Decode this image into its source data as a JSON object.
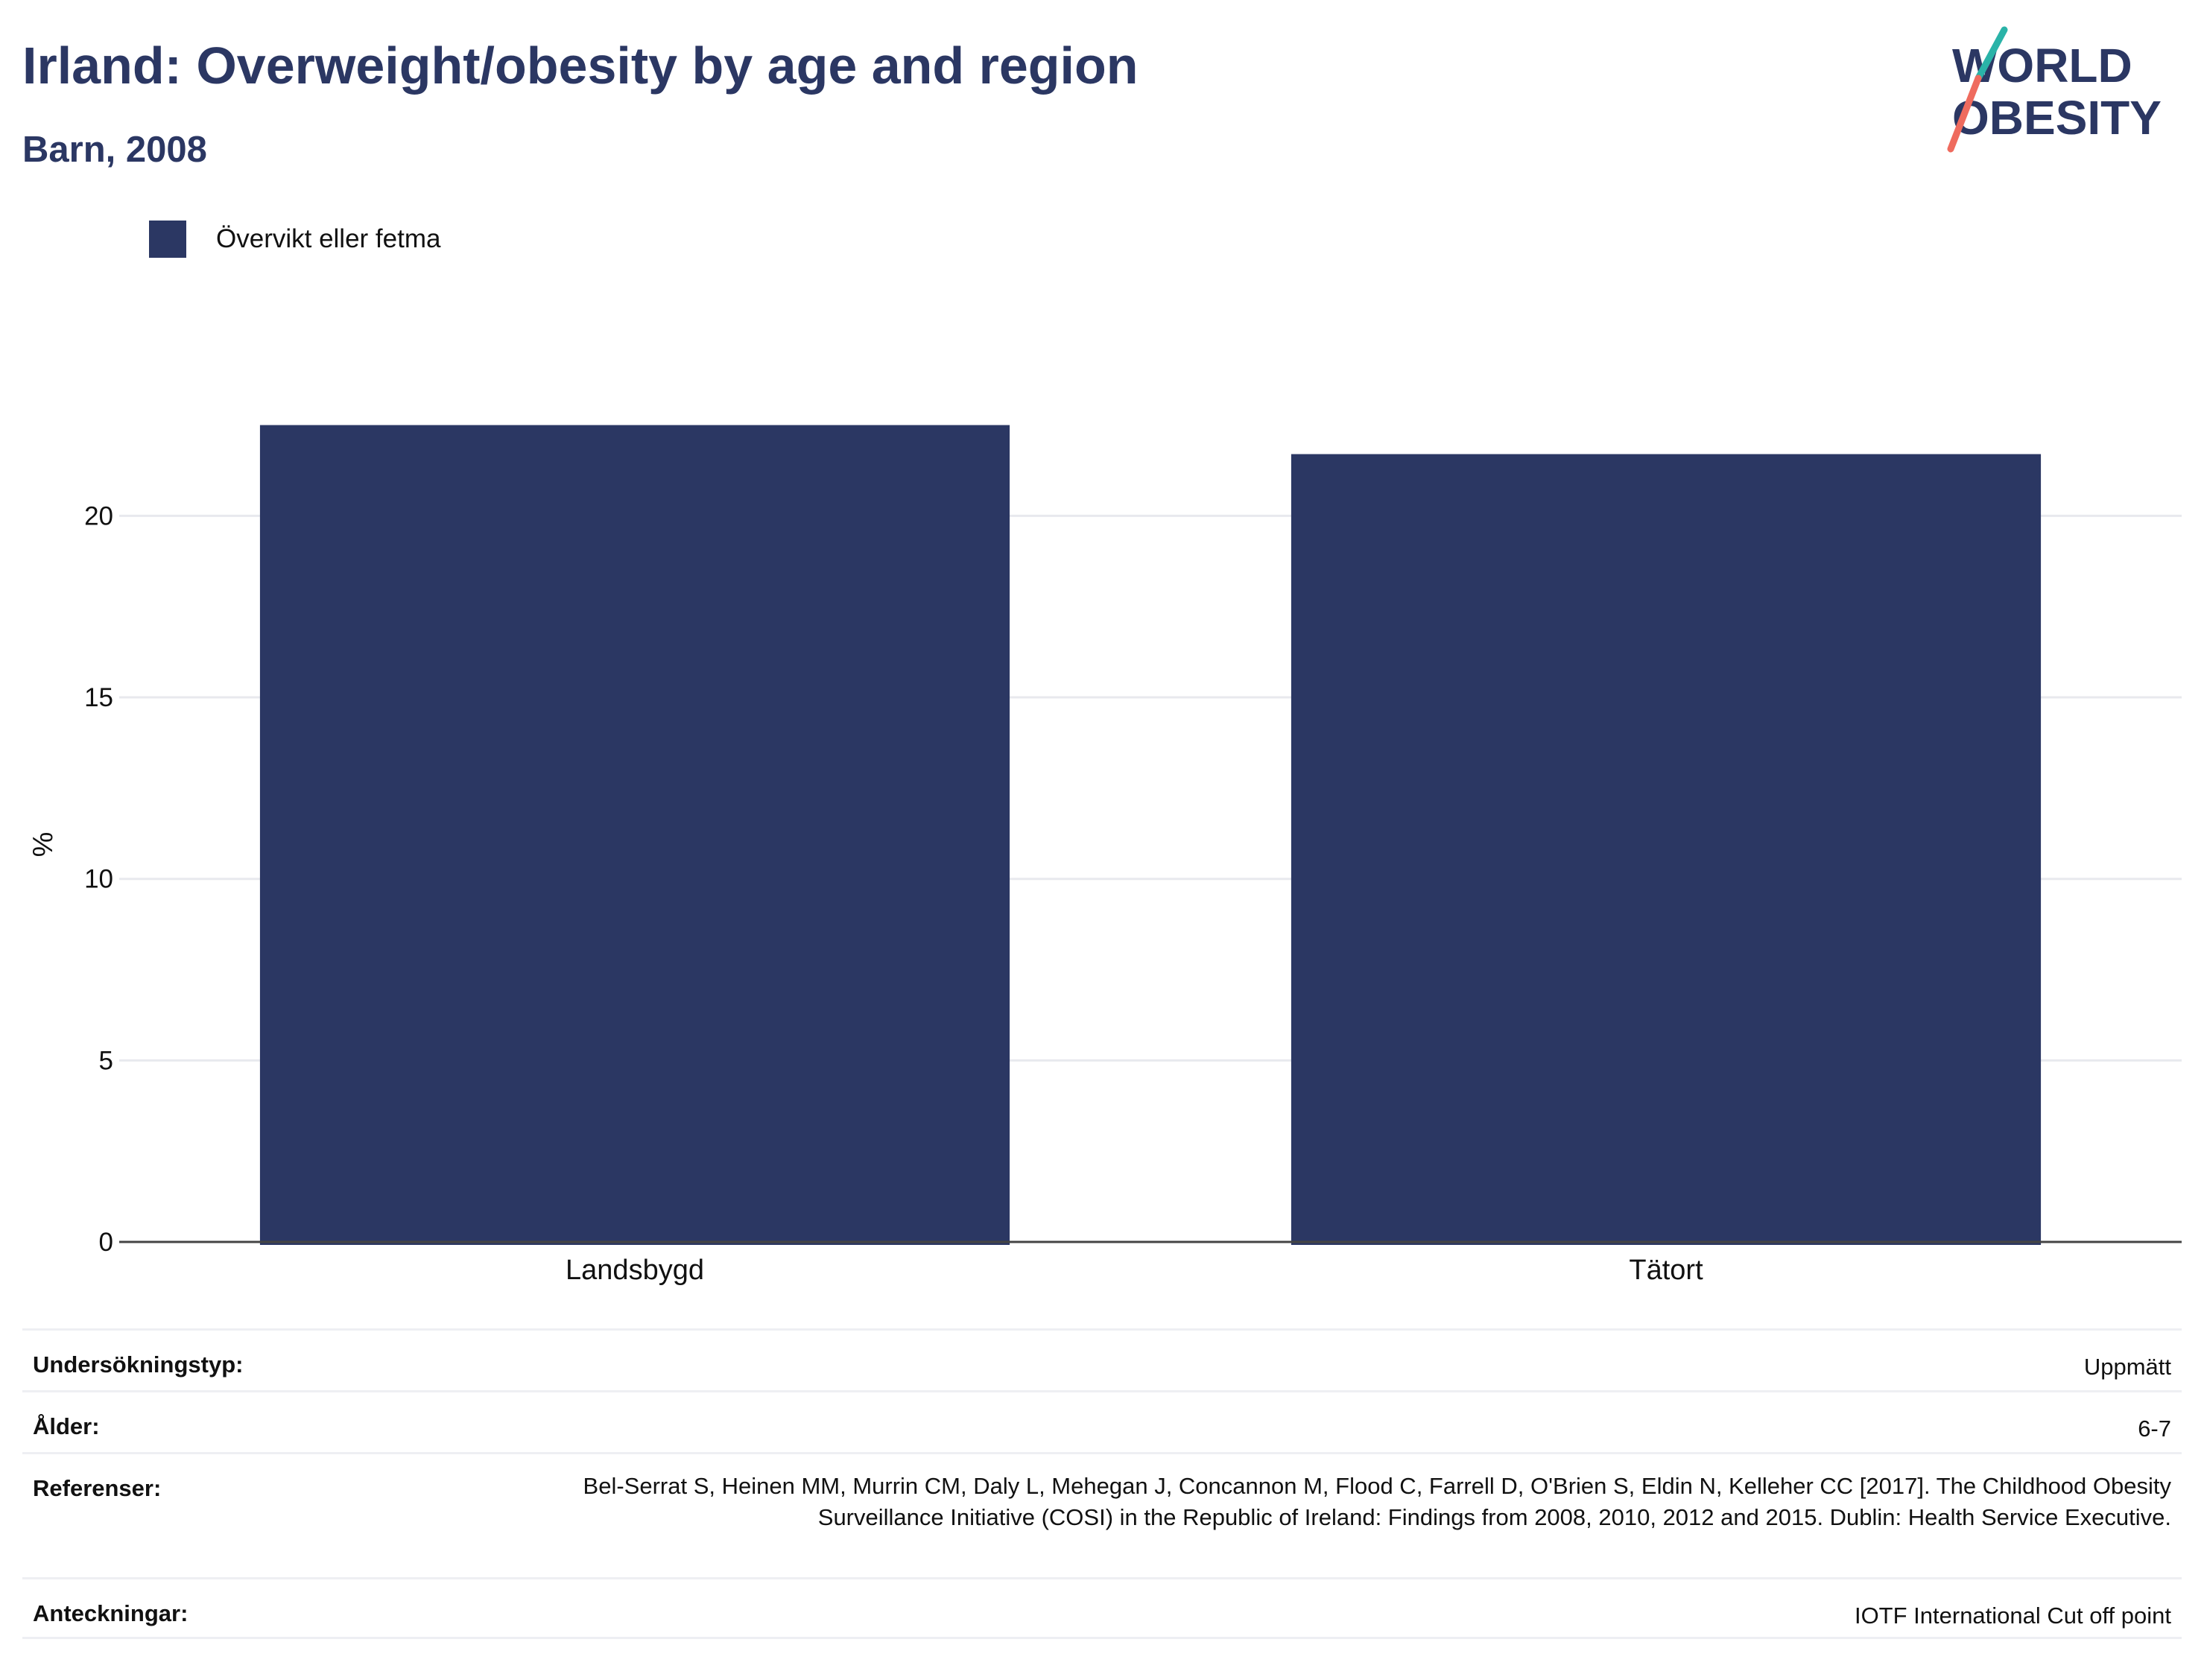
{
  "header": {
    "title": "Irland: Overweight/obesity by age and region",
    "subtitle": "Barn, 2008"
  },
  "logo": {
    "line1": "WORLD",
    "line2": "OBESITY"
  },
  "colors": {
    "bar": "#2b3763",
    "title": "#2b3763",
    "grid": "#e8e9ee",
    "logo_teal": "#2ab3a8",
    "logo_coral": "#ef6b5e"
  },
  "legend": {
    "items": [
      {
        "label": "Övervikt eller fetma"
      }
    ]
  },
  "chart_data": {
    "type": "bar",
    "categories": [
      "Landsbygd",
      "Tätort"
    ],
    "series": [
      {
        "name": "Övervikt eller fetma",
        "values": [
          22.5,
          21.7
        ]
      }
    ],
    "title": "Irland: Overweight/obesity by age and region",
    "subtitle": "Barn, 2008",
    "xlabel": "",
    "ylabel": "%",
    "ylim": [
      0,
      26
    ],
    "yticks": [
      0,
      5,
      10,
      15,
      20
    ],
    "grid": true,
    "legend_position": "top-left"
  },
  "info": [
    {
      "label": "Undersökningstyp:",
      "value": "Uppmätt"
    },
    {
      "label": "Ålder:",
      "value": "6-7"
    },
    {
      "label": "Referenser:",
      "value": "Bel-Serrat S, Heinen MM, Murrin CM, Daly L, Mehegan J, Concannon M, Flood C, Farrell D, O'Brien S, Eldin N, Kelleher CC [2017]. The Childhood Obesity Surveillance Initiative (COSI) in the Republic of Ireland: Findings from 2008, 2010, 2012 and 2015. Dublin: Health Service Executive."
    },
    {
      "label": "Anteckningar:",
      "value": "IOTF International Cut off point"
    }
  ]
}
